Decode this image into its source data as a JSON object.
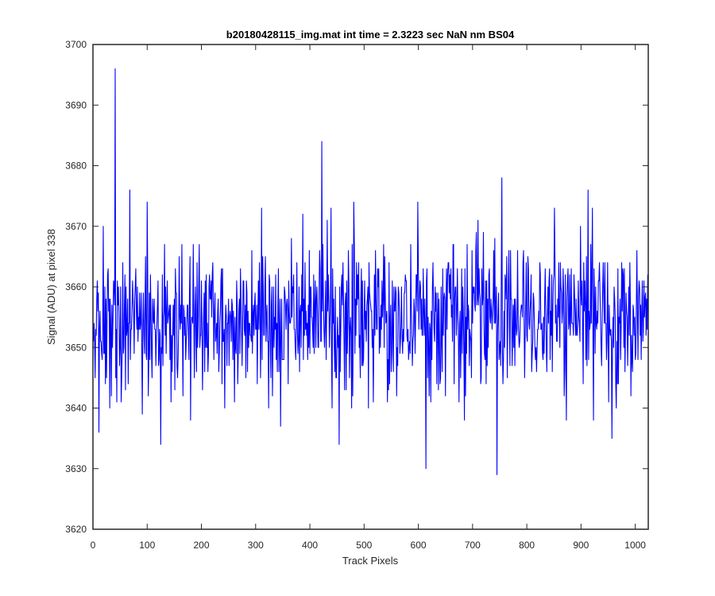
{
  "chart_data": {
    "type": "line",
    "title": "b20180428115_img.mat int time = 2.3223 sec  NaN nm BS04",
    "xlabel": "Track Pixels",
    "ylabel": "Signal (ADU) at pixel 338",
    "xlim": [
      0,
      1024
    ],
    "ylim": [
      3620,
      3700
    ],
    "xticks": [
      0,
      100,
      200,
      300,
      400,
      500,
      600,
      700,
      800,
      900,
      1000
    ],
    "yticks": [
      3620,
      3630,
      3640,
      3650,
      3660,
      3670,
      3680,
      3690,
      3700
    ],
    "grid": false,
    "legend": "none",
    "series": [
      {
        "color": "#0000ff",
        "x_start": 1,
        "x_step": 1,
        "mean": 3655,
        "std": 6,
        "count": 1024,
        "noise": "random",
        "extremes": [
          {
            "x": 41,
            "y": 3696
          },
          {
            "x": 422,
            "y": 3684
          },
          {
            "x": 754,
            "y": 3678
          },
          {
            "x": 68,
            "y": 3676
          },
          {
            "x": 913,
            "y": 3676
          },
          {
            "x": 11,
            "y": 3636
          },
          {
            "x": 125,
            "y": 3634
          },
          {
            "x": 346,
            "y": 3637
          },
          {
            "x": 454,
            "y": 3634
          },
          {
            "x": 614,
            "y": 3630
          },
          {
            "x": 745,
            "y": 3629
          },
          {
            "x": 957,
            "y": 3635
          }
        ]
      }
    ]
  }
}
